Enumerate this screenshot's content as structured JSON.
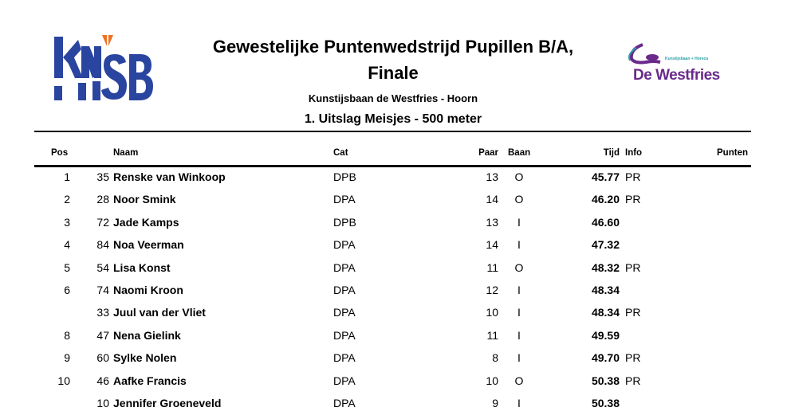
{
  "header": {
    "title_line1": "Gewestelijke Puntenwedstrijd Pupillen B/A,",
    "title_line2": "Finale",
    "venue": "Kunstijsbaan de Westfries - Hoorn",
    "section": "1. Uitslag Meisjes - 500 meter",
    "logo_left": "KNSB",
    "logo_right": {
      "name": "De Westfries",
      "tagline": "Kunstijsbaan + Horeca"
    }
  },
  "colors": {
    "knsb_blue": "#2a45a0",
    "knsb_orange": "#f07020",
    "westfries_purple": "#6a2a8a",
    "westfries_teal": "#2aa0a8"
  },
  "table": {
    "columns": {
      "pos": "Pos",
      "naam": "Naam",
      "cat": "Cat",
      "paar": "Paar",
      "baan": "Baan",
      "tijd": "Tijd",
      "info": "Info",
      "punten": "Punten"
    },
    "rows": [
      {
        "pos": "1",
        "nr": "35",
        "naam": "Renske van Winkoop",
        "cat": "DPB",
        "paar": "13",
        "baan": "O",
        "tijd": "45.77",
        "info": "PR"
      },
      {
        "pos": "2",
        "nr": "28",
        "naam": "Noor Smink",
        "cat": "DPA",
        "paar": "14",
        "baan": "O",
        "tijd": "46.20",
        "info": "PR"
      },
      {
        "pos": "3",
        "nr": "72",
        "naam": "Jade Kamps",
        "cat": "DPB",
        "paar": "13",
        "baan": "I",
        "tijd": "46.60",
        "info": ""
      },
      {
        "pos": "4",
        "nr": "84",
        "naam": "Noa Veerman",
        "cat": "DPA",
        "paar": "14",
        "baan": "I",
        "tijd": "47.32",
        "info": ""
      },
      {
        "pos": "5",
        "nr": "54",
        "naam": "Lisa Konst",
        "cat": "DPA",
        "paar": "11",
        "baan": "O",
        "tijd": "48.32",
        "info": "PR"
      },
      {
        "pos": "6",
        "nr": "74",
        "naam": "Naomi Kroon",
        "cat": "DPA",
        "paar": "12",
        "baan": "I",
        "tijd": "48.34",
        "info": ""
      },
      {
        "pos": "",
        "nr": "33",
        "naam": "Juul van der Vliet",
        "cat": "DPA",
        "paar": "10",
        "baan": "I",
        "tijd": "48.34",
        "info": "PR"
      },
      {
        "pos": "8",
        "nr": "47",
        "naam": "Nena Gielink",
        "cat": "DPA",
        "paar": "11",
        "baan": "I",
        "tijd": "49.59",
        "info": ""
      },
      {
        "pos": "9",
        "nr": "60",
        "naam": "Sylke Nolen",
        "cat": "DPA",
        "paar": "8",
        "baan": "I",
        "tijd": "49.70",
        "info": "PR"
      },
      {
        "pos": "10",
        "nr": "46",
        "naam": "Aafke Francis",
        "cat": "DPA",
        "paar": "10",
        "baan": "O",
        "tijd": "50.38",
        "info": "PR"
      },
      {
        "pos": "",
        "nr": "10",
        "naam": "Jennifer Groeneveld",
        "cat": "DPA",
        "paar": "9",
        "baan": "I",
        "tijd": "50.38",
        "info": ""
      }
    ]
  }
}
